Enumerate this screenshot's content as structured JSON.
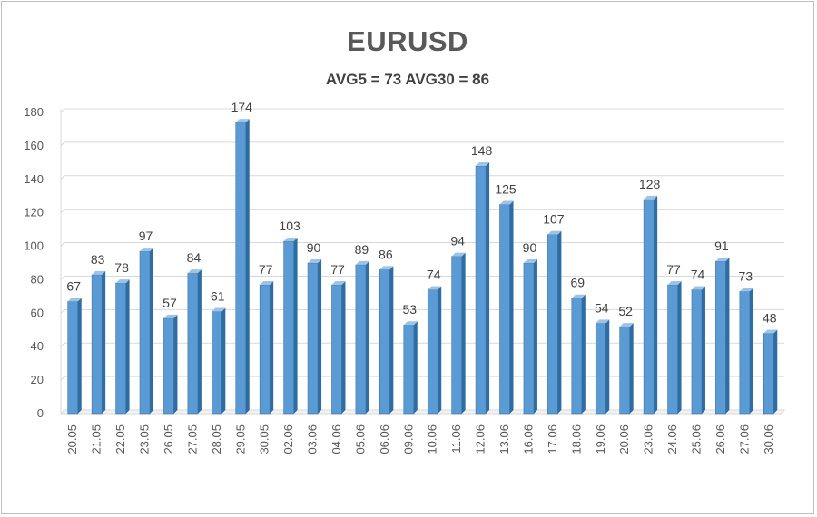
{
  "chart_data": {
    "type": "bar",
    "title": "EURUSD",
    "subtitle": "AVG5 = 73 AVG30 = 86",
    "xlabel": "",
    "ylabel": "",
    "ylim": [
      0,
      180
    ],
    "yticks": [
      0,
      20,
      40,
      60,
      80,
      100,
      120,
      140,
      160,
      180
    ],
    "grid": true,
    "bar_color": "#5b9bd5",
    "categories": [
      "20.05",
      "21.05",
      "22.05",
      "23.05",
      "26.05",
      "27.05",
      "28.05",
      "29.05",
      "30.05",
      "02.06",
      "03.06",
      "04.06",
      "05.06",
      "06.06",
      "09.06",
      "10.06",
      "11.06",
      "12.06",
      "13.06",
      "16.06",
      "17.06",
      "18.06",
      "19.06",
      "20.06",
      "23.06",
      "24.06",
      "25.06",
      "26.06",
      "27.06",
      "30.06"
    ],
    "values": [
      67,
      83,
      78,
      97,
      57,
      84,
      61,
      174,
      77,
      103,
      90,
      77,
      89,
      86,
      53,
      74,
      94,
      148,
      125,
      90,
      107,
      69,
      54,
      52,
      128,
      77,
      74,
      91,
      73,
      48
    ]
  }
}
